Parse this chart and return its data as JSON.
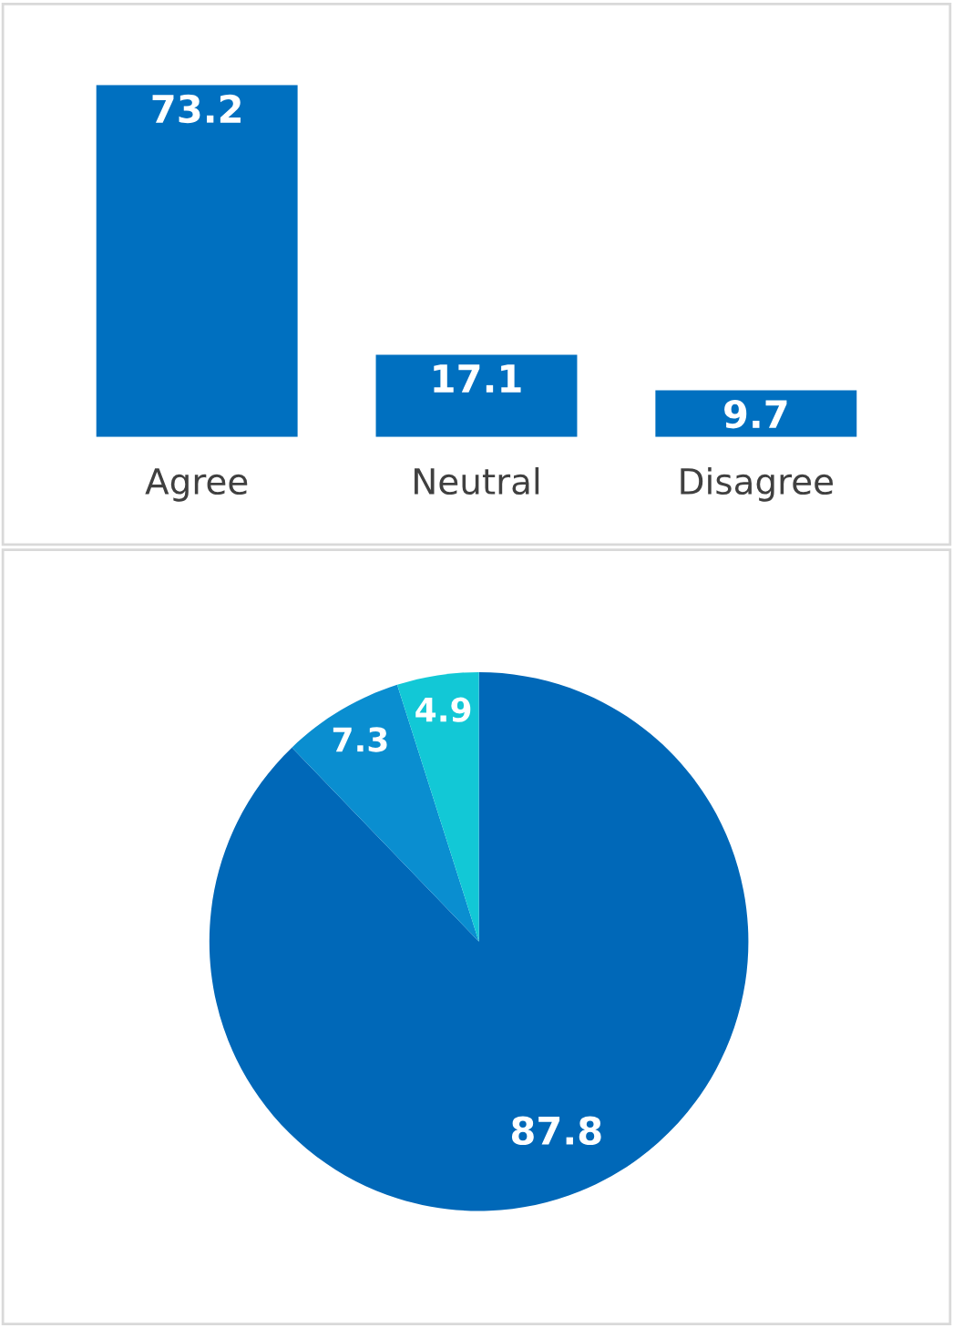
{
  "chart_data": [
    {
      "type": "bar",
      "categories": [
        "Agree",
        "Neutral",
        "Disagree"
      ],
      "values": [
        73.2,
        17.1,
        9.7
      ],
      "color": "#0070c0",
      "data_labels": true
    },
    {
      "type": "pie",
      "categories": [
        null,
        null,
        null
      ],
      "values": [
        87.8,
        7.3,
        4.9
      ],
      "colors": [
        "#0068b8",
        "#0a8ed0",
        "#12c8d6"
      ],
      "data_labels": true
    }
  ]
}
